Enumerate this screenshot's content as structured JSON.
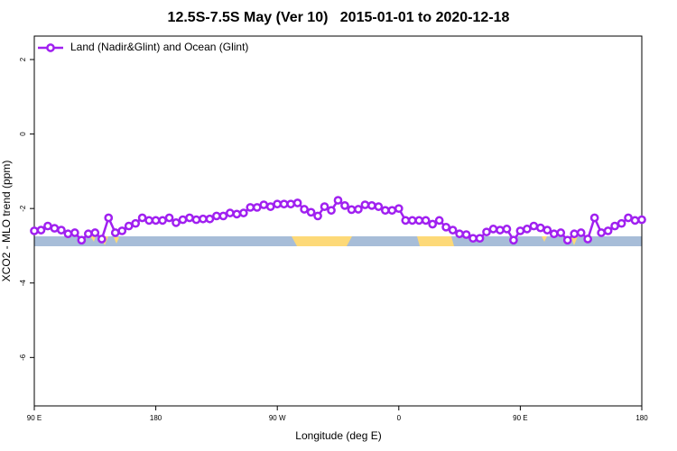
{
  "chart_data": {
    "type": "line",
    "title": "12.5S-7.5S May (Ver 10)   2015-01-01 to 2020-12-18",
    "xlabel": "Longitude (deg E)",
    "ylabel": "XCO2 - MLO trend (ppm)",
    "x": [
      90,
      95,
      100,
      105,
      110,
      115,
      120,
      125,
      130,
      135,
      140,
      145,
      150,
      155,
      160,
      165,
      170,
      175,
      180,
      185,
      190,
      195,
      200,
      205,
      210,
      215,
      220,
      225,
      230,
      235,
      240,
      245,
      250,
      255,
      260,
      265,
      270,
      275,
      280,
      285,
      290,
      295,
      300,
      305,
      310,
      315,
      320,
      325,
      330,
      335,
      340,
      345,
      350,
      355,
      360,
      365,
      370,
      375,
      380,
      385,
      390,
      395,
      400,
      405,
      410,
      415,
      420,
      425,
      430,
      435,
      440,
      445,
      450,
      455,
      460,
      465,
      470,
      475,
      480,
      485,
      490,
      495,
      500,
      505,
      510,
      515,
      520,
      525,
      530,
      535,
      540
    ],
    "series": [
      {
        "name": "Land (Nadir&Glint) and Ocean (Glint)",
        "color": "#a020f0",
        "values": [
          -2.6,
          -2.58,
          -2.47,
          -2.53,
          -2.58,
          -2.68,
          -2.65,
          -2.85,
          -2.68,
          -2.65,
          -2.82,
          -2.25,
          -2.65,
          -2.6,
          -2.47,
          -2.4,
          -2.25,
          -2.32,
          -2.32,
          -2.32,
          -2.25,
          -2.38,
          -2.3,
          -2.25,
          -2.3,
          -2.28,
          -2.28,
          -2.2,
          -2.2,
          -2.12,
          -2.15,
          -2.12,
          -1.97,
          -1.97,
          -1.9,
          -1.95,
          -1.88,
          -1.88,
          -1.88,
          -1.85,
          -2.02,
          -2.1,
          -2.2,
          -1.95,
          -2.05,
          -1.78,
          -1.92,
          -2.03,
          -2.02,
          -1.9,
          -1.92,
          -1.95,
          -2.05,
          -2.05,
          -2.0,
          -2.32,
          -2.32,
          -2.32,
          -2.32,
          -2.42,
          -2.32,
          -2.5,
          -2.58,
          -2.68,
          -2.7,
          -2.8,
          -2.8,
          -2.63,
          -2.55,
          -2.58,
          -2.55,
          -2.85,
          -2.6,
          -2.55,
          -2.47,
          -2.52,
          -2.58,
          -2.68,
          -2.65,
          -2.85,
          -2.68,
          -2.65,
          -2.82,
          -2.25,
          -2.65,
          -2.6,
          -2.47,
          -2.4,
          -2.25,
          -2.32,
          -2.3
        ]
      }
    ],
    "xlim": [
      90,
      540
    ],
    "xticks": [
      {
        "value": 90,
        "label": "90 E"
      },
      180,
      {
        "value": 270,
        "label": "90 W"
      },
      {
        "value": 360,
        "label": "0"
      },
      {
        "value": 450,
        "label": "90 E"
      },
      {
        "value": 540,
        "label": "180"
      }
    ],
    "ylim": [
      -7.3,
      2.63
    ],
    "yticks": [
      2,
      0,
      -2,
      -4,
      -6
    ],
    "legend": "top-left"
  }
}
